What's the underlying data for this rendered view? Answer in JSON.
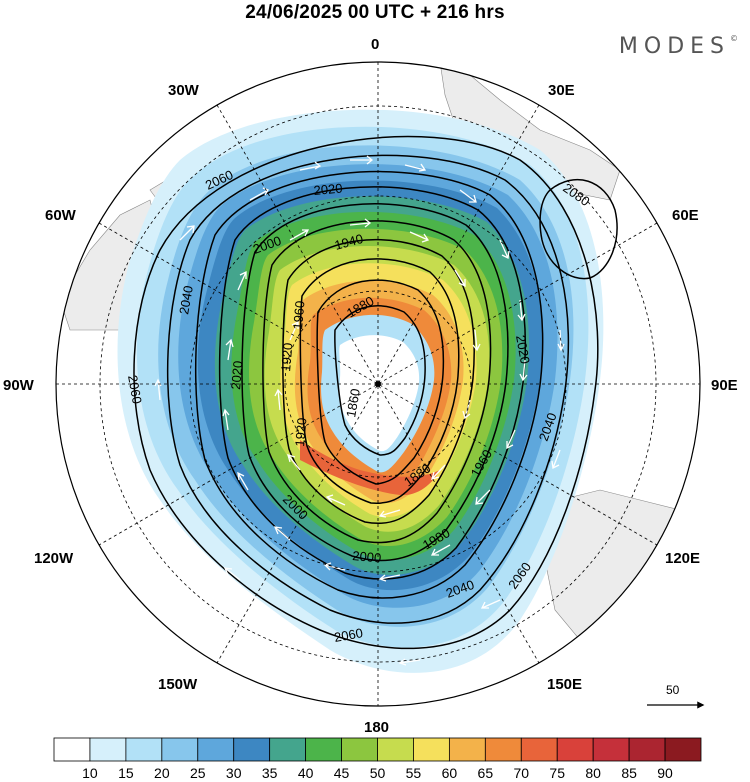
{
  "header": {
    "title": "24/06/2025  00 UTC  + 216 hrs",
    "brand": "MODES",
    "brand_mark": "©"
  },
  "map": {
    "projection": "south-polar-stereographic",
    "lon_labels": {
      "l0": "0",
      "l30e": "30E",
      "l60e": "60E",
      "l90e": "90E",
      "l120e": "120E",
      "l150e": "150E",
      "l180": "180",
      "l150w": "150W",
      "l120w": "120W",
      "l90w": "90W",
      "l60w": "60W",
      "l30w": "30W"
    },
    "contour_labels": [
      "1860",
      "1880",
      "1920",
      "1940",
      "1960",
      "1980",
      "2000",
      "2020",
      "2040",
      "2060",
      "2080"
    ],
    "vector_reference": {
      "value": "50"
    }
  },
  "colorbar": {
    "colors": [
      "#ffffff",
      "#d6f0fb",
      "#b2e1f7",
      "#87c6ec",
      "#5ea7dc",
      "#3d87c2",
      "#44a58d",
      "#4cb44a",
      "#8cc63f",
      "#c6dc4e",
      "#f5e05c",
      "#f3b24a",
      "#ef8a3a",
      "#e8643a",
      "#d9413a",
      "#c5303a",
      "#ab2530",
      "#8b1a20"
    ],
    "labels": [
      "10",
      "15",
      "20",
      "25",
      "30",
      "35",
      "40",
      "45",
      "50",
      "55",
      "60",
      "65",
      "70",
      "75",
      "80",
      "85",
      "90"
    ]
  },
  "colors": {
    "contour": "#000000",
    "vectors": "#ffffff",
    "land": "#ececec",
    "frame": "#000000"
  }
}
